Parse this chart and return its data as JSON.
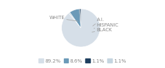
{
  "labels": [
    "WHITE",
    "A.I.",
    "HISPANIC",
    "BLACK"
  ],
  "values": [
    89.2,
    1.1,
    8.6,
    1.1
  ],
  "colors": [
    "#d6dfe8",
    "#c5d5e0",
    "#6b9ab8",
    "#1f3f5f"
  ],
  "legend_labels": [
    "89.2%",
    "8.6%",
    "1.1%",
    "1.1%"
  ],
  "legend_colors": [
    "#d6dfe8",
    "#6b9ab8",
    "#1f3f5f",
    "#c5d5e0"
  ],
  "startangle": 90,
  "background_color": "#ffffff",
  "label_fontsize": 5.0,
  "legend_fontsize": 5.2,
  "text_color": "#888888"
}
